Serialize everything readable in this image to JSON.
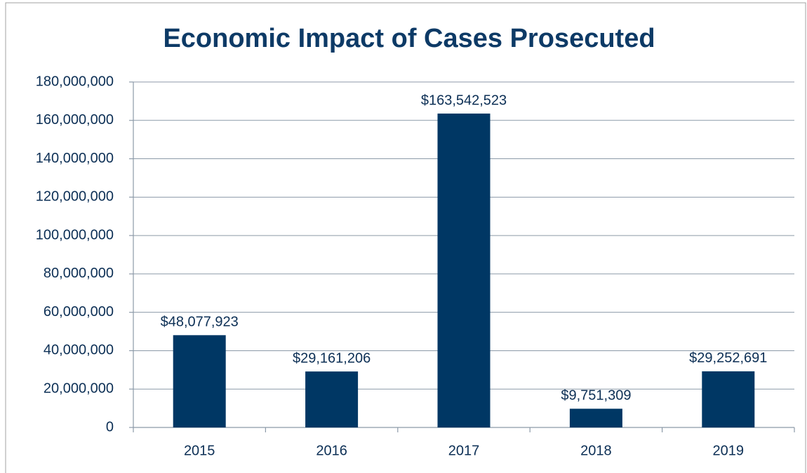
{
  "chart_data": {
    "type": "bar",
    "title": "Economic Impact of Cases Prosecuted",
    "categories": [
      "2015",
      "2016",
      "2017",
      "2018",
      "2019"
    ],
    "values": [
      48077923,
      29161206,
      163542523,
      9751309,
      29252691
    ],
    "value_labels": [
      "$48,077,923",
      "$29,161,206",
      "$163,542,523",
      "$9,751,309",
      "$29,252,691"
    ],
    "color": "#003764",
    "ylim": [
      0,
      180000000
    ],
    "yticks": [
      0,
      {
        "value": 20000000,
        "label": "20,000,000"
      },
      {
        "value": 40000000,
        "label": "40,000,000"
      },
      {
        "value": 60000000,
        "label": "60,000,000"
      },
      {
        "value": 80000000,
        "label": "80,000,000"
      },
      {
        "value": 100000000,
        "label": "100,000,000"
      },
      {
        "value": 120000000,
        "label": "120,000,000"
      },
      {
        "value": 140000000,
        "label": "140,000,000"
      },
      {
        "value": 160000000,
        "label": "160,000,000"
      },
      {
        "value": 180000000,
        "label": "180,000,000"
      }
    ],
    "grid": true
  }
}
